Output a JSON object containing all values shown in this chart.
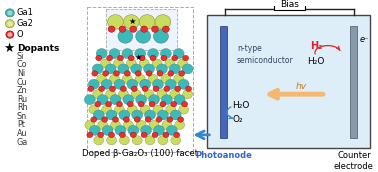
{
  "legend_items": [
    {
      "label": "Ga1",
      "color": "#3bbaba",
      "type": "circle"
    },
    {
      "label": "Ga2",
      "color": "#c8dc60",
      "type": "circle"
    },
    {
      "label": "O",
      "color": "#e83030",
      "type": "circle"
    }
  ],
  "dopants_label": "Dopants",
  "dopants_list": [
    "Si",
    "Co",
    "Ni",
    "Cu",
    "Zn",
    "Ru",
    "Rh",
    "Sn",
    "Pt",
    "Au",
    "Ga"
  ],
  "crystal_label": "Doped β-Ga₂O₃ (100) facet",
  "bias_label": "Bias",
  "semiconductor_label": "n-type\nsemiconductor",
  "photoanode_label": "Photoanode",
  "counter_label": "Counter\nelectrode",
  "hv_label": "hv",
  "H2_label": "H₂",
  "H2O_left_label": "H₂O",
  "H2O_right_label": "H₂O",
  "O2_label": "O₂",
  "e_label": "e⁻",
  "bg_color": "#ffffff",
  "cell_bg": "#ddeef8",
  "cell_border": "#444444",
  "electrode_left_color": "#4466bb",
  "electrode_right_color": "#8899aa",
  "arrow_hv_color": "#f5b870",
  "arrow_blue_color": "#3388cc",
  "arrow_red_color": "#dd2222",
  "wire_color": "#222222",
  "text_blue": "#3366cc",
  "text_red": "#dd2222"
}
